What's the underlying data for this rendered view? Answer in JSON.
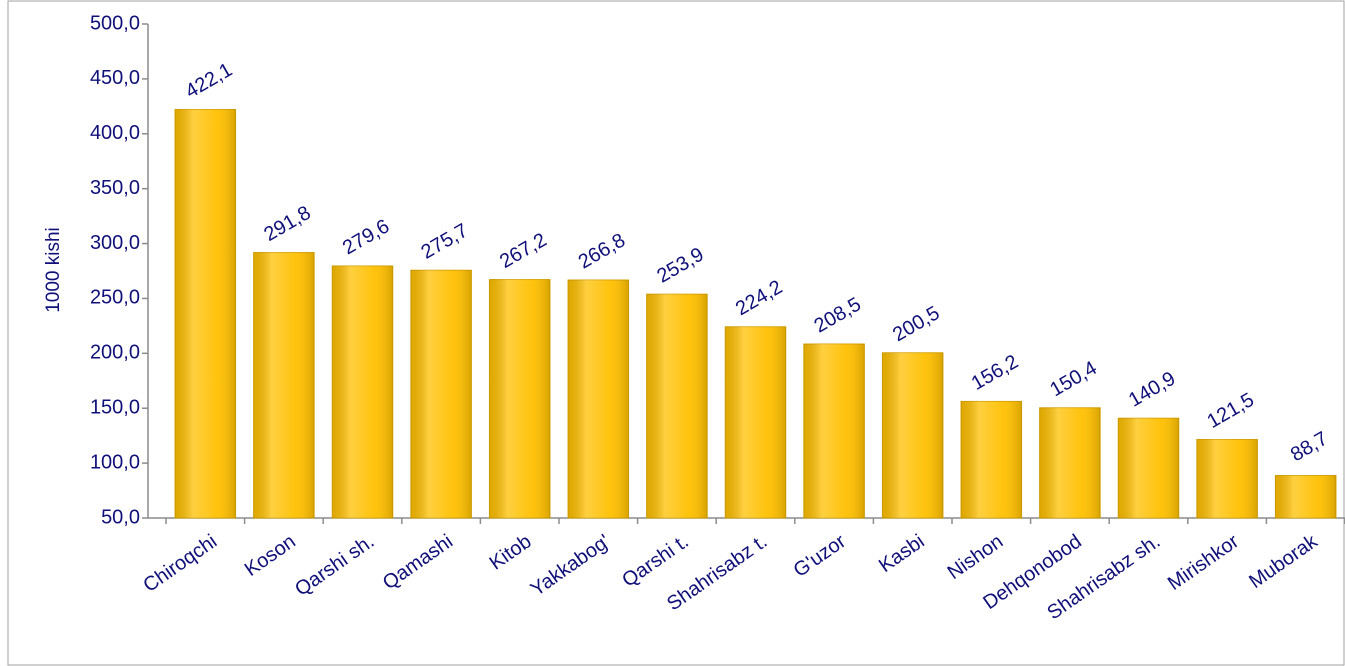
{
  "chart_data": {
    "type": "bar",
    "y_label": "1000 kishi",
    "categories": [
      "Chiroqchi",
      "Koson",
      "Qarshi sh.",
      "Qamashi",
      "Kitob",
      "Yakkabog'",
      "Qarshi t.",
      "Shahrisabz t.",
      "G'uzor",
      "Kasbi",
      "Nishon",
      "Dehqonobod",
      "Shahrisabz sh.",
      "Mirishkor",
      "Muborak"
    ],
    "values": [
      422.1,
      291.8,
      279.6,
      275.7,
      267.2,
      266.8,
      253.9,
      224.2,
      208.5,
      200.5,
      156.2,
      150.4,
      140.9,
      121.5,
      88.7
    ],
    "value_labels": [
      "422,1",
      "291,8",
      "279,6",
      "275,7",
      "267,2",
      "266,8",
      "253,9",
      "224,2",
      "208,5",
      "200,5",
      "156,2",
      "150,4",
      "140,9",
      "121,5",
      "88,7"
    ],
    "color": "#ffc000",
    "ylim": [
      50,
      500
    ],
    "yticks": [
      {
        "value": 50,
        "label": "50,0"
      },
      {
        "value": 100,
        "label": "100,0"
      },
      {
        "value": 150,
        "label": "150,0"
      },
      {
        "value": 200,
        "label": "200,0"
      },
      {
        "value": 250,
        "label": "250,0"
      },
      {
        "value": 300,
        "label": "300,0"
      },
      {
        "value": 350,
        "label": "350,0"
      },
      {
        "value": 400,
        "label": "400,0"
      },
      {
        "value": 450,
        "label": "450,0"
      },
      {
        "value": 500,
        "label": "500,0"
      }
    ],
    "grid": false
  }
}
